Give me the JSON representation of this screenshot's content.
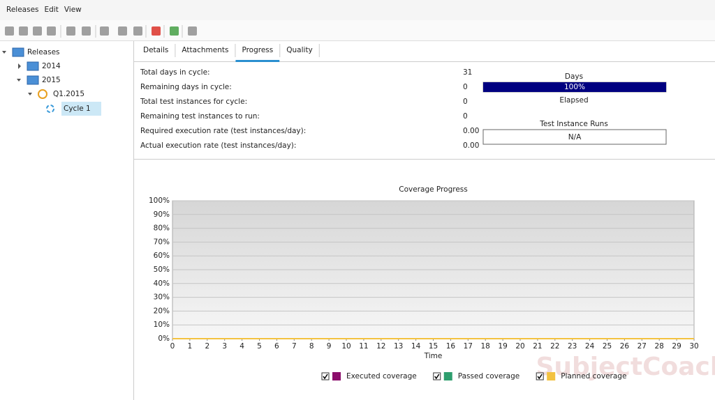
{
  "menu": [
    "Releases",
    "Edit",
    "View"
  ],
  "tree": [
    {
      "label": "Releases",
      "level": 0,
      "expanded": true
    },
    {
      "label": "2014",
      "level": 1,
      "expanded": false
    },
    {
      "label": "2015",
      "level": 1,
      "expanded": true
    },
    {
      "label": "Q1.2015",
      "level": 2,
      "expanded": true
    },
    {
      "label": "Cycle 1",
      "level": 3,
      "selected": true
    }
  ],
  "tabs": [
    "Details",
    "Attachments",
    "Progress",
    "Quality"
  ],
  "active_tab": 2,
  "stats": [
    {
      "label": "Total days in cycle:",
      "value": "31"
    },
    {
      "label": "Remaining days in cycle:",
      "value": "0"
    },
    {
      "label": "Total test instances for cycle:",
      "value": "0"
    },
    {
      "label": "Remaining test instances to run:",
      "value": "0"
    },
    {
      "label": "Required execution rate (test instances/day):",
      "value": "0.00"
    },
    {
      "label": "Actual execution rate (test instances/day):",
      "value": "0.00"
    }
  ],
  "days": {
    "title": "Days",
    "percent": 100,
    "percent_label": "100%",
    "caption": "Elapsed"
  },
  "runs": {
    "title": "Test Instance Runs",
    "value": "N/A"
  },
  "watermark": "SubjectCoach",
  "chart_data": {
    "type": "line",
    "title": "Coverage Progress",
    "x_label": "Time",
    "x": [
      0,
      30
    ],
    "series": [
      {
        "name": "Executed coverage",
        "color": "#8b0d6b",
        "values": [
          0,
          0
        ]
      },
      {
        "name": "Passed coverage",
        "color": "#2e9e6e",
        "values": [
          0,
          0
        ]
      },
      {
        "name": "Planned coverage",
        "color": "#f3c240",
        "values": [
          0,
          0
        ]
      }
    ],
    "xlim": [
      0,
      30
    ],
    "xticks": [
      0,
      1,
      2,
      3,
      4,
      5,
      6,
      7,
      8,
      9,
      10,
      11,
      12,
      13,
      14,
      15,
      16,
      17,
      18,
      19,
      20,
      21,
      22,
      23,
      24,
      25,
      26,
      27,
      28,
      29,
      30
    ],
    "ylim": [
      0,
      100
    ],
    "yticks": [
      {
        "value": 0,
        "label": "0%"
      },
      {
        "value": 10,
        "label": "10%"
      },
      {
        "value": 20,
        "label": "20%"
      },
      {
        "value": 30,
        "label": "30%"
      },
      {
        "value": 40,
        "label": "40%"
      },
      {
        "value": 50,
        "label": "50%"
      },
      {
        "value": 60,
        "label": "60%"
      },
      {
        "value": 70,
        "label": "70%"
      },
      {
        "value": 80,
        "label": "80%"
      },
      {
        "value": 90,
        "label": "90%"
      },
      {
        "value": 100,
        "label": "100%"
      }
    ],
    "grid": true
  }
}
